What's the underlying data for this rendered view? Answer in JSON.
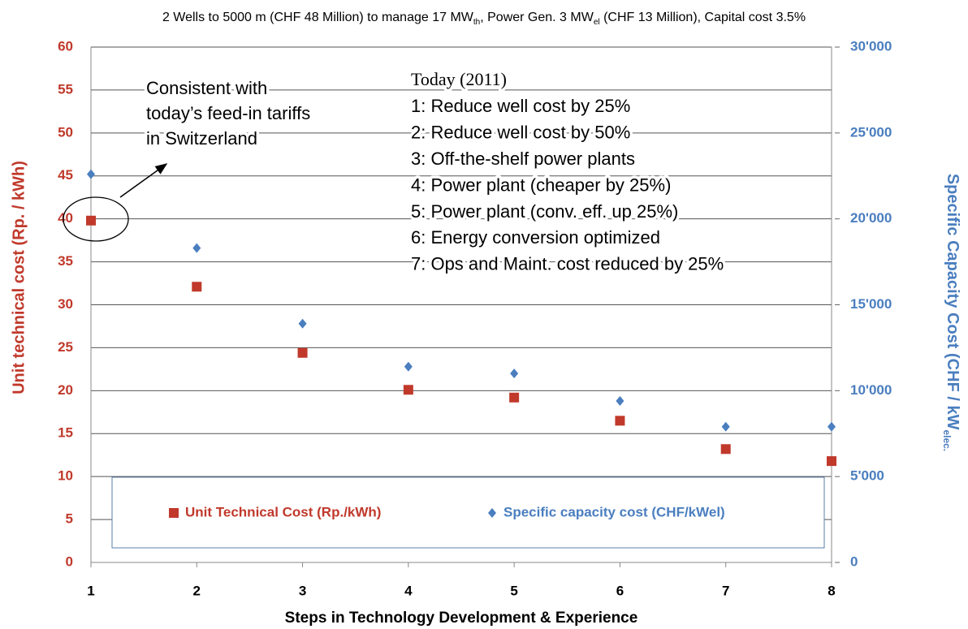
{
  "chart_data": {
    "type": "scatter",
    "title": [
      "2 Wells to 5000 m (CHF 48 Million) to manage 17 MW",
      "th",
      ", Power Gen. 3 MW",
      "el",
      " (CHF 13 Million), Capital cost 3.5%"
    ],
    "xlabel": "Steps in Technology  Development & Experience",
    "ylabel": "Unit technical cost (Rp. / kWh)",
    "y2label": [
      "Specific Capacity Cost (CHF / kW",
      "elec."
    ],
    "x": [
      1,
      2,
      3,
      4,
      5,
      6,
      7,
      8
    ],
    "series": [
      {
        "name": "Unit Technical Cost (Rp./kWh)",
        "color": "#c0392b",
        "marker": "square",
        "values": [
          39.8,
          32.1,
          24.4,
          20.1,
          19.2,
          16.5,
          13.2,
          11.8
        ]
      },
      {
        "name": "Specific capacity cost (CHF/kWel)",
        "color": "#4a7ebf",
        "marker": "diamond",
        "axis": "y2",
        "values": [
          22600,
          18300,
          13900,
          11400,
          11000,
          9400,
          7900,
          7900
        ]
      }
    ],
    "xlim": [
      1,
      8
    ],
    "xticks": [
      1,
      2,
      3,
      4,
      5,
      6,
      7,
      8
    ],
    "ylim": [
      0,
      60
    ],
    "yticks": [
      0,
      5,
      10,
      15,
      20,
      25,
      30,
      35,
      40,
      45,
      50,
      55,
      60
    ],
    "y2lim": [
      0,
      30000
    ],
    "y2ticks": [
      0,
      {
        "value": 5000,
        "label": "5'000"
      },
      {
        "value": 10000,
        "label": "10'000"
      },
      {
        "value": 15000,
        "label": "15'000"
      },
      {
        "value": 20000,
        "label": "20'000"
      },
      {
        "value": 25000,
        "label": "25'000"
      },
      {
        "value": 30000,
        "label": "30'000"
      }
    ],
    "grid": true,
    "legend": "bottom",
    "annotations": {
      "callout": [
        "Consistent with",
        "today’s feed-in tariffs",
        "in Switzerland"
      ],
      "steps": [
        "Today (2011)",
        "1: Reduce well cost by 25%",
        "2: Reduce well cost by 50%",
        "3: Off-the-shelf power plants",
        "4: Power plant (cheaper by 25%)",
        "5: Power plant (conv. eff. up 25%)",
        "6: Energy conversion optimized",
        "7: Ops and Maint. cost reduced by 25%"
      ]
    }
  }
}
